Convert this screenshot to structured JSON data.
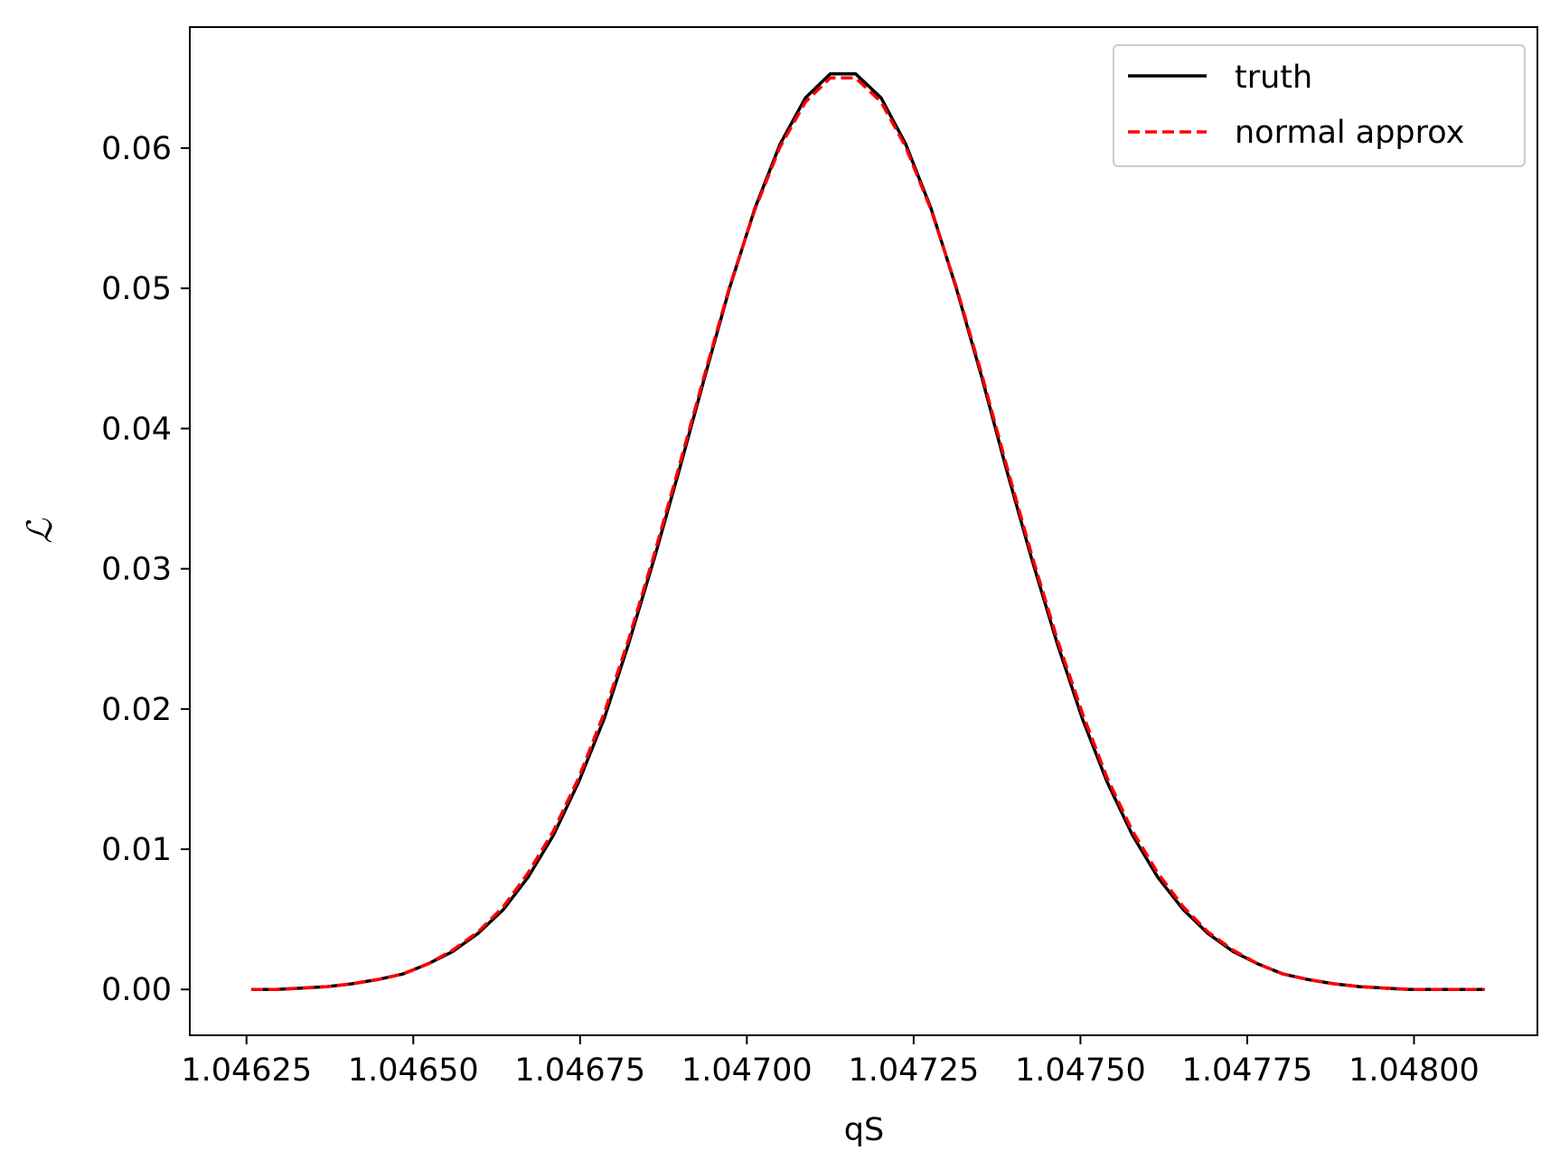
{
  "chart_data": {
    "type": "line",
    "title": "",
    "xlabel": "qS",
    "ylabel": "ℒ",
    "xlim": [
      1.046165,
      1.048185
    ],
    "ylim": [
      -0.00327,
      0.06863
    ],
    "x_ticks": [
      1.04625,
      1.0465,
      1.04675,
      1.047,
      1.04725,
      1.0475,
      1.04775,
      1.048
    ],
    "x_tick_labels": [
      "1.04625",
      "1.04650",
      "1.04675",
      "1.04700",
      "1.04725",
      "1.04750",
      "1.04775",
      "1.04800"
    ],
    "y_ticks": [
      0.0,
      0.01,
      0.02,
      0.03,
      0.04,
      0.05,
      0.06
    ],
    "y_tick_labels": [
      "0.00",
      "0.01",
      "0.02",
      "0.03",
      "0.04",
      "0.05",
      "0.06"
    ],
    "grid": false,
    "legend_position": "top-right",
    "x": [
      1.046257,
      1.046295,
      1.046333,
      1.046371,
      1.046408,
      1.046446,
      1.046484,
      1.046521,
      1.046559,
      1.046597,
      1.046635,
      1.046672,
      1.04671,
      1.046748,
      1.046786,
      1.046823,
      1.046861,
      1.046899,
      1.046937,
      1.046974,
      1.047012,
      1.04705,
      1.047088,
      1.047125,
      1.047163,
      1.047201,
      1.047238,
      1.047276,
      1.047314,
      1.047352,
      1.047389,
      1.047427,
      1.047465,
      1.047503,
      1.04754,
      1.047578,
      1.047616,
      1.047654,
      1.047691,
      1.047729,
      1.047767,
      1.047804,
      1.047842,
      1.04788,
      1.047918,
      1.047955,
      1.047993,
      1.048031,
      1.048069,
      1.048106
    ],
    "series": [
      {
        "name": "truth",
        "color": "#000000",
        "style": "solid",
        "values": [
          0.0,
          0.0,
          0.0001,
          0.0002,
          0.0004,
          0.0007,
          0.0011,
          0.0018,
          0.0027,
          0.004,
          0.0057,
          0.008,
          0.011,
          0.0148,
          0.0193,
          0.0247,
          0.0307,
          0.0371,
          0.0437,
          0.05,
          0.0557,
          0.0603,
          0.0636,
          0.0653,
          0.0653,
          0.0636,
          0.0603,
          0.0557,
          0.05,
          0.0437,
          0.0371,
          0.0307,
          0.0247,
          0.0193,
          0.0148,
          0.011,
          0.008,
          0.0057,
          0.004,
          0.0027,
          0.0018,
          0.0011,
          0.0007,
          0.0004,
          0.0002,
          0.0001,
          0.0,
          0.0,
          0.0,
          0.0
        ]
      },
      {
        "name": "normal approx",
        "color": "#ff0000",
        "style": "dashed",
        "values": [
          0.0,
          0.0,
          0.0001,
          0.0002,
          0.0004,
          0.0007,
          0.0011,
          0.0018,
          0.0028,
          0.0041,
          0.0059,
          0.0083,
          0.0113,
          0.0151,
          0.0197,
          0.025,
          0.031,
          0.0374,
          0.0439,
          0.0501,
          0.0556,
          0.0601,
          0.0633,
          0.065,
          0.065,
          0.0633,
          0.0601,
          0.0556,
          0.0501,
          0.0439,
          0.0374,
          0.031,
          0.025,
          0.0197,
          0.0151,
          0.0113,
          0.0083,
          0.0059,
          0.0041,
          0.0028,
          0.0018,
          0.0011,
          0.0007,
          0.0004,
          0.0002,
          0.0001,
          0.0,
          0.0,
          0.0,
          0.0
        ]
      }
    ]
  }
}
